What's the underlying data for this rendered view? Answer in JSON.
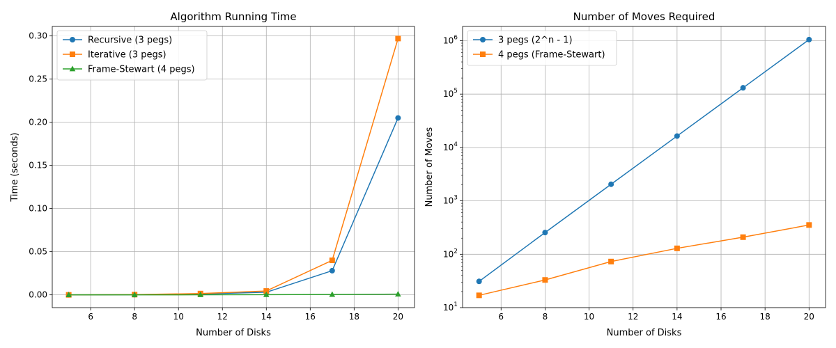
{
  "chart_data": [
    {
      "type": "line",
      "title": "Algorithm Running Time",
      "xlabel": "Number of Disks",
      "ylabel": "Time (seconds)",
      "x": [
        5,
        8,
        11,
        14,
        17,
        20
      ],
      "xlim": [
        4.25,
        20.75
      ],
      "ylim": [
        -0.0148,
        0.311
      ],
      "yscale": "linear",
      "xticks": [
        6,
        8,
        10,
        12,
        14,
        16,
        18,
        20
      ],
      "xtick_labels": [
        "6",
        "8",
        "10",
        "12",
        "14",
        "16",
        "18",
        "20"
      ],
      "yticks": [
        0.0,
        0.05,
        0.1,
        0.15,
        0.2,
        0.25,
        0.3
      ],
      "ytick_labels": [
        "0.00",
        "0.05",
        "0.10",
        "0.15",
        "0.20",
        "0.25",
        "0.30"
      ],
      "grid": true,
      "legend_position": "top-left",
      "series": [
        {
          "name": "Recursive (3 pegs)",
          "color": "#1f77b4",
          "marker": "circle",
          "values": [
            0.0,
            0.0002,
            0.001,
            0.003,
            0.028,
            0.205
          ]
        },
        {
          "name": "Iterative (3 pegs)",
          "color": "#ff7f0e",
          "marker": "square",
          "values": [
            0.0,
            0.0003,
            0.0015,
            0.0045,
            0.04,
            0.297
          ]
        },
        {
          "name": "Frame-Stewart (4 pegs)",
          "color": "#2ca02c",
          "marker": "triangle",
          "values": [
            0.0,
            0.0,
            0.0001,
            0.0002,
            0.0004,
            0.0008
          ]
        }
      ]
    },
    {
      "type": "line",
      "title": "Number of Moves Required",
      "xlabel": "Number of Disks",
      "ylabel": "Number of Moves",
      "x": [
        5,
        8,
        11,
        14,
        17,
        20
      ],
      "xlim": [
        4.25,
        20.75
      ],
      "ylim": [
        10,
        1850000
      ],
      "yscale": "log",
      "xticks": [
        6,
        8,
        10,
        12,
        14,
        16,
        18,
        20
      ],
      "xtick_labels": [
        "6",
        "8",
        "10",
        "12",
        "14",
        "16",
        "18",
        "20"
      ],
      "yticks": [
        10,
        100,
        1000,
        10000,
        100000,
        1000000
      ],
      "ytick_exponents": [
        "1",
        "2",
        "3",
        "4",
        "5",
        "6"
      ],
      "grid": true,
      "legend_position": "top-left",
      "series": [
        {
          "name": "3 pegs (2^n - 1)",
          "color": "#1f77b4",
          "marker": "circle",
          "values": [
            31,
            255,
            2047,
            16383,
            131071,
            1048575
          ]
        },
        {
          "name": "4 pegs (Frame-Stewart)",
          "color": "#ff7f0e",
          "marker": "square",
          "values": [
            17,
            33,
            73,
            129,
            209,
            353
          ]
        }
      ]
    }
  ]
}
